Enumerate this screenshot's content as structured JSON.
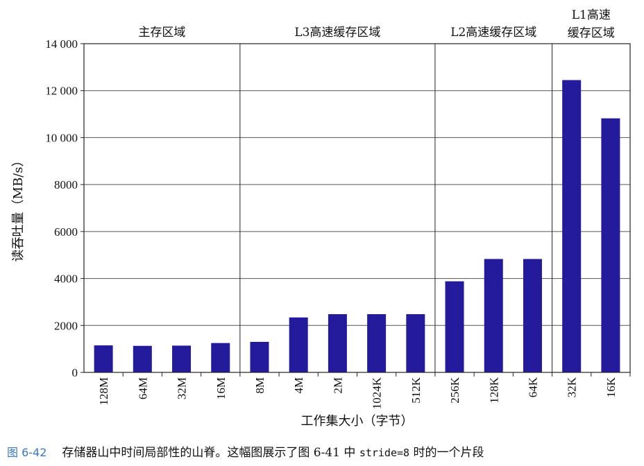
{
  "chart_data": {
    "type": "bar",
    "categories": [
      "128M",
      "64M",
      "32M",
      "16M",
      "8M",
      "4M",
      "2M",
      "1024K",
      "512K",
      "256K",
      "128K",
      "64K",
      "32K",
      "16K"
    ],
    "values": [
      1150,
      1130,
      1140,
      1250,
      1300,
      2340,
      2480,
      2480,
      2480,
      3880,
      4830,
      4830,
      12450,
      10820
    ],
    "ylim": [
      0,
      14000
    ],
    "yticks": [
      0,
      2000,
      4000,
      6000,
      8000,
      10000,
      12000,
      14000
    ],
    "ytick_labels": [
      "0",
      "2000",
      "4000",
      "6000",
      "8000",
      "10 000",
      "12 000",
      "14 000"
    ],
    "xlabel": "工作集大小（字节）",
    "ylabel": "读吞吐量（MB/s）",
    "grid": true,
    "bar_color": "#241a9c",
    "regions": [
      {
        "label_lines": [
          "主存区域"
        ],
        "start": 0,
        "end": 4
      },
      {
        "label_lines": [
          "L3高速缓存区域"
        ],
        "start": 4,
        "end": 9
      },
      {
        "label_lines": [
          "L2高速缓存区域"
        ],
        "start": 9,
        "end": 12
      },
      {
        "label_lines": [
          "L1高速",
          "缓存区域"
        ],
        "start": 12,
        "end": 14
      }
    ]
  },
  "caption": {
    "figure_label": "图 6-42",
    "text_before": "存储器山中时间局部性的山脊。这幅图展示了图 6-41 中 ",
    "code": "stride=8",
    "text_after": " 时的一个片段"
  }
}
